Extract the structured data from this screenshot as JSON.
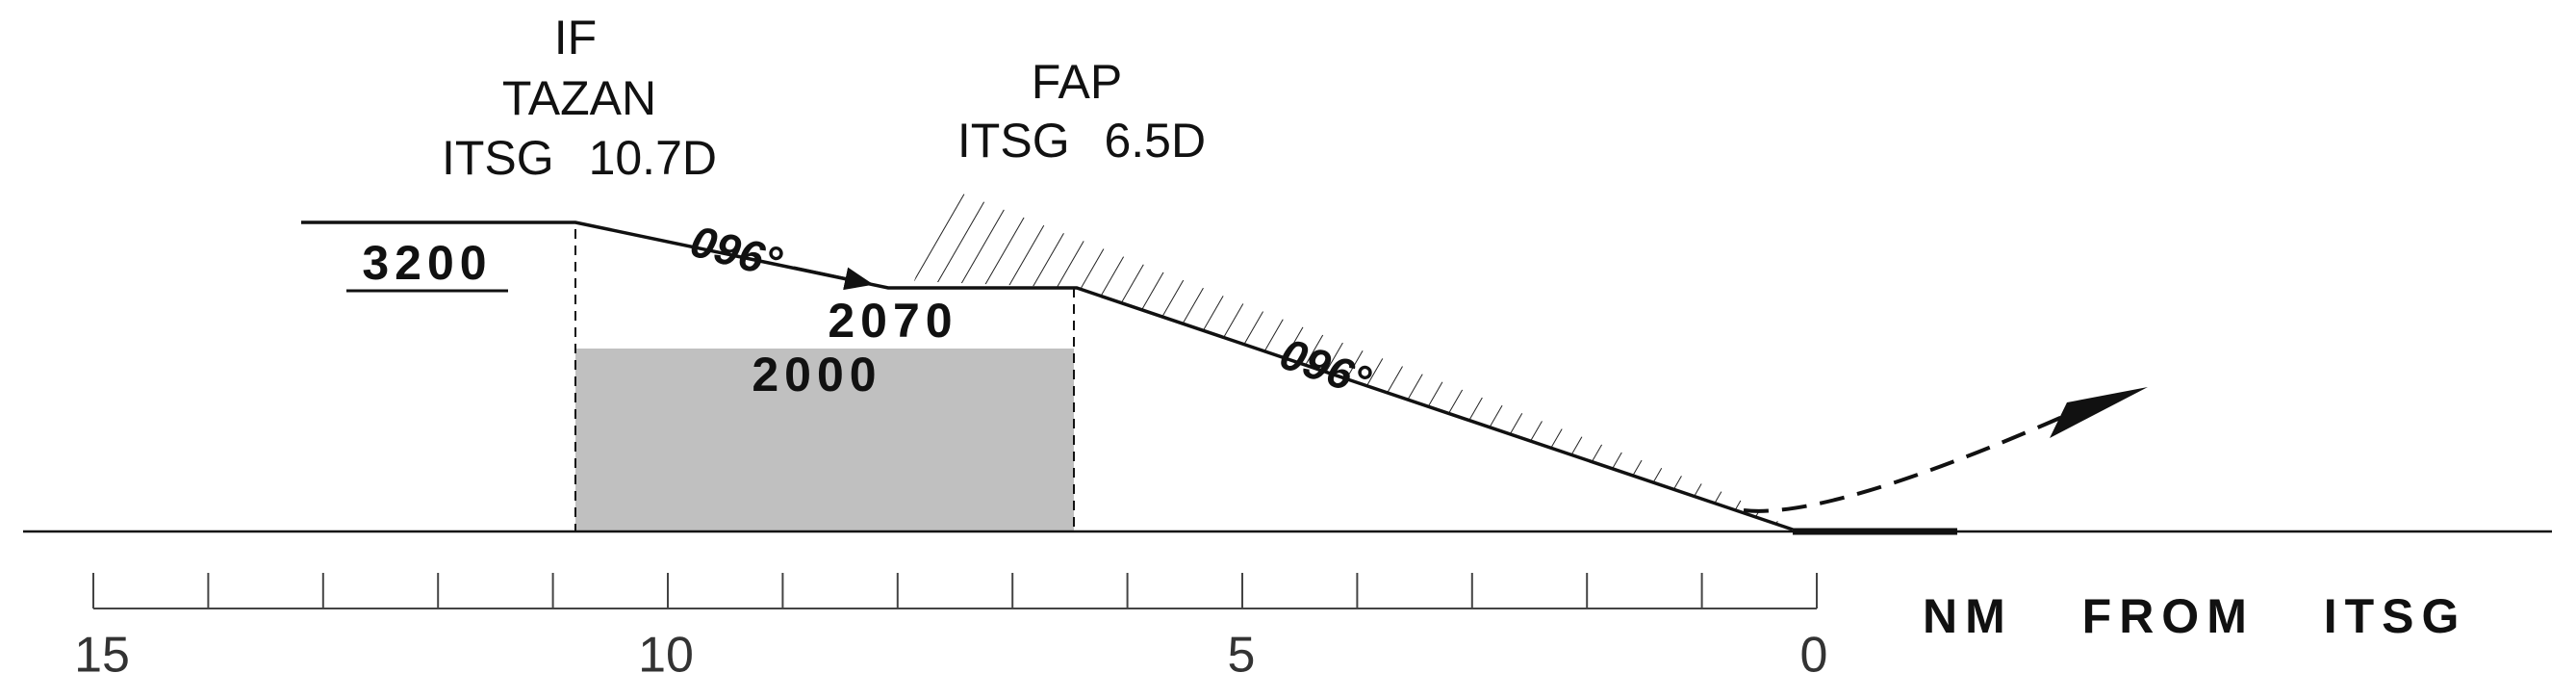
{
  "fixes": [
    {
      "lines": [
        "IF",
        "TAZAN",
        "ITSG 10.7D"
      ]
    },
    {
      "lines": [
        "FAP",
        "ITSG 6.5D"
      ]
    }
  ],
  "altitudes": {
    "initial": "3200",
    "fap": "2070",
    "minimum": "2000"
  },
  "tracks": [
    "096°",
    "096°"
  ],
  "scale": {
    "labels": [
      "15",
      "10",
      "5",
      "0"
    ],
    "unit": "NM FROM ITSG"
  }
}
